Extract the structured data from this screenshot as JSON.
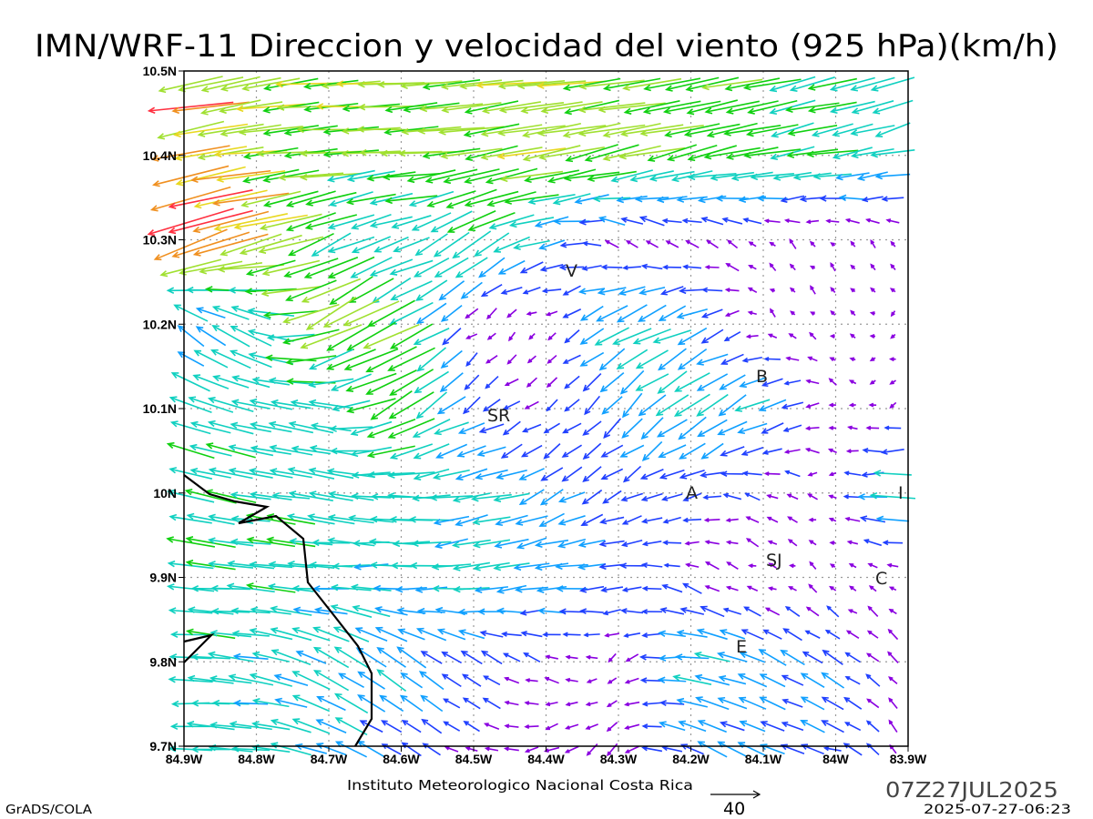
{
  "title": "IMN/WRF-11 Direccion y velocidad del viento (925 hPa)(km/h)",
  "footer": {
    "institute": "Instituto Meteorologico Nacional Costa Rica",
    "valid_time": "07Z27JUL2025",
    "generated": "2025-07-27-06:23",
    "software": "GrADS/COLA",
    "ref_vector_label": "40"
  },
  "stations": [
    {
      "label": "V"
    },
    {
      "label": "SR"
    },
    {
      "label": "B"
    },
    {
      "label": "A"
    },
    {
      "label": "I"
    },
    {
      "label": "SJ"
    },
    {
      "label": "C"
    },
    {
      "label": "E"
    }
  ],
  "chart_data": {
    "type": "vector-field",
    "title": "IMN/WRF-11 Direccion y velocidad del viento (925 hPa)(km/h)",
    "units": "km/h",
    "reference_vector": 40,
    "x_ticks": [
      "84.9W",
      "84.8W",
      "84.7W",
      "84.6W",
      "84.5W",
      "84.4W",
      "84.3W",
      "84.2W",
      "84.1W",
      "84W",
      "83.9W"
    ],
    "y_ticks": [
      "10.5N",
      "10.4N",
      "10.3N",
      "10.2N",
      "10.1N",
      "10N",
      "9.9N",
      "9.8N",
      "9.7N"
    ],
    "lon_range": [
      -84.9,
      -83.9
    ],
    "lat_range": [
      9.7,
      10.5
    ],
    "grid": true,
    "coarse_lons": [
      -84.9,
      -84.8,
      -84.7,
      -84.6,
      -84.5,
      -84.4,
      -84.3,
      -84.2,
      -84.1,
      -84.0,
      -83.9
    ],
    "coarse_lats": [
      10.5,
      10.4,
      10.3,
      10.2,
      10.1,
      10.0,
      9.9,
      9.8,
      9.7
    ],
    "u": [
      [
        -60,
        -50,
        -48,
        -50,
        -48,
        -50,
        -48,
        -45,
        -40,
        -35,
        -32
      ],
      [
        -62,
        -50,
        -48,
        -45,
        -45,
        -48,
        -48,
        -42,
        -40,
        -35,
        -30
      ],
      [
        -68,
        -55,
        -35,
        -25,
        -35,
        -25,
        -8,
        -10,
        -5,
        -3,
        -3
      ],
      [
        -15,
        -30,
        -45,
        -40,
        -5,
        -3,
        -30,
        -25,
        -3,
        -3,
        -3
      ],
      [
        -30,
        -35,
        -30,
        -35,
        -15,
        -8,
        -15,
        -25,
        -25,
        -5,
        -5
      ],
      [
        -35,
        -35,
        -32,
        -35,
        -30,
        -20,
        -15,
        -15,
        -10,
        -5,
        -40
      ],
      [
        -35,
        -35,
        -32,
        -30,
        -28,
        -25,
        -20,
        -10,
        -5,
        -3,
        -5
      ],
      [
        -35,
        -30,
        -25,
        -20,
        -15,
        -10,
        -5,
        -30,
        -20,
        -15,
        -5
      ],
      [
        -35,
        -30,
        -25,
        -15,
        -10,
        -10,
        -8,
        -20,
        -20,
        -15,
        -3
      ]
    ],
    "v": [
      [
        -8,
        -8,
        -3,
        -3,
        -5,
        -5,
        -6,
        -8,
        -10,
        -10,
        -12
      ],
      [
        -12,
        -5,
        -2,
        -2,
        -8,
        -10,
        -10,
        -10,
        -8,
        -6,
        -6
      ],
      [
        -25,
        -15,
        -15,
        -10,
        -20,
        -5,
        8,
        8,
        5,
        4,
        3
      ],
      [
        15,
        15,
        -25,
        -20,
        -5,
        -3,
        -15,
        -10,
        3,
        3,
        -3
      ],
      [
        10,
        8,
        5,
        -25,
        -10,
        -8,
        -15,
        -20,
        -10,
        3,
        -3
      ],
      [
        8,
        6,
        5,
        2,
        -5,
        -10,
        -8,
        -5,
        5,
        0,
        0
      ],
      [
        3,
        3,
        0,
        0,
        -5,
        -5,
        0,
        5,
        3,
        3,
        3
      ],
      [
        2,
        5,
        15,
        15,
        10,
        5,
        -5,
        3,
        10,
        10,
        5
      ],
      [
        2,
        2,
        10,
        10,
        5,
        -5,
        -8,
        10,
        8,
        5,
        10
      ]
    ]
  }
}
